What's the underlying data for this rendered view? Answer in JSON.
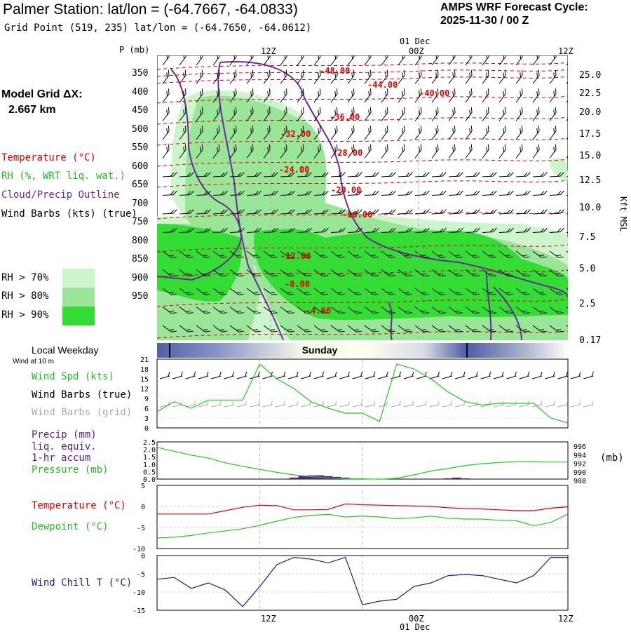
{
  "header": {
    "station_title": "Palmer Station:  lat/lon = (-64.7667, -64.0833)",
    "grid_point": "Grid Point (519, 235) lat/lon = (-64.7650, -64.0612)",
    "forecast_label": "AMPS WRF Forecast Cycle:",
    "forecast_cycle": "2025-11-30 / 00  Z"
  },
  "model": {
    "label": "Model Grid ΔX:",
    "value": "2.667 km"
  },
  "time_axis": {
    "date_label": "01 Dec",
    "ticks": [
      "12Z",
      "00Z",
      "12Z"
    ]
  },
  "colors": {
    "temperature": "#e00000",
    "rh": "#22bb22",
    "cloud": "#6a2a9a",
    "wind": "#000000",
    "wind_grid": "#aaaaaa",
    "precip": "#5a1a8a",
    "dewpoint": "#22cc22",
    "windchill": "#1a1aaa",
    "rh70": "#ccf5cc",
    "rh80": "#99e699",
    "rh90": "#33dd33",
    "weekday_bar": "#5060aa"
  },
  "legend": {
    "temperature": "Temperature (°C)",
    "rh": "RH (%, WRT liq. wat.)",
    "cloud": "Cloud/Precip Outline",
    "wind": "Wind Barbs (kts) (true)",
    "rh70": "RH > 70%",
    "rh80": "RH > 80%",
    "rh90": "RH > 90%"
  },
  "weekday": {
    "label": "Local Weekday",
    "day": "Sunday",
    "wind_note": "Wind at 10 m"
  },
  "chart_data": [
    {
      "type": "contour",
      "name": "cross-section",
      "ylabel": "P (mb)",
      "y2label": "Kft MSL",
      "pressure_ticks": [
        "350",
        "400",
        "450",
        "500",
        "550",
        "600",
        "650",
        "700",
        "750",
        "800",
        "850",
        "900",
        "950"
      ],
      "height_ticks": [
        "25.0",
        "22.5",
        "20.0",
        "17.5",
        "15.0",
        "12.5",
        "10.0",
        "7.5",
        "5.0",
        "2.5",
        "0.17"
      ],
      "temperature_labels": [
        "-48.00",
        "-44.00",
        "-40.00",
        "-36.00",
        "-32.00",
        "-28.00",
        "-24.00",
        "-20.00",
        "-16.00",
        "-12.00",
        "-8.00",
        "-4.00"
      ]
    },
    {
      "type": "line",
      "name": "wind",
      "labels": [
        "Wind Spd (kts)",
        "Wind Barbs (true)",
        "Wind Barbs (grid)"
      ],
      "yticks": [
        "21",
        "18",
        "15",
        "12",
        "9",
        "6",
        "3",
        "0"
      ],
      "ylim": [
        0,
        21
      ],
      "x_hours": [
        0,
        2,
        4,
        6,
        8,
        10,
        12,
        14,
        16,
        18,
        20,
        22,
        24,
        26,
        28,
        30,
        32,
        34,
        36,
        38,
        40,
        42,
        44,
        46,
        48
      ],
      "wind_speed": [
        5,
        8,
        6,
        8.5,
        8.5,
        8.5,
        19.5,
        15,
        12,
        8,
        6,
        4.5,
        4.5,
        2,
        19.5,
        18,
        15,
        11,
        8,
        7,
        7.5,
        7.5,
        7.5,
        3,
        1.5
      ]
    },
    {
      "type": "line",
      "name": "precip-pressure",
      "labels": [
        "Precip (mm)",
        "liq. equiv.",
        "1-hr accum",
        "Pressure (mb)"
      ],
      "yticks_left": [
        "2.5",
        "2.0",
        "1.5",
        "1.0",
        "0.5",
        "0.0"
      ],
      "yticks_right": [
        "996",
        "994",
        "992",
        "990",
        "988"
      ],
      "y2label": "(mb)",
      "x_hours": [
        0,
        2,
        4,
        6,
        8,
        10,
        12,
        14,
        16,
        18,
        20,
        22,
        24,
        26,
        28,
        30,
        32,
        34,
        36,
        38,
        40,
        42,
        44,
        46,
        48
      ],
      "pressure": [
        995.7,
        994.8,
        993.9,
        993.2,
        992.1,
        991.3,
        990.6,
        989.9,
        989.3,
        988.9,
        988.6,
        988.4,
        988.4,
        988.3,
        988.5,
        989.3,
        990.2,
        990.8,
        991.5,
        991.9,
        992.2,
        992.4,
        992.4,
        992.3,
        992.3
      ],
      "precip_hours": [
        16,
        17,
        18,
        19,
        20,
        21,
        22,
        23,
        34,
        35,
        36
      ],
      "precip": [
        0.1,
        0.2,
        0.25,
        0.25,
        0.2,
        0.15,
        0.1,
        0.05,
        0.05,
        0.1,
        0.05
      ]
    },
    {
      "type": "line",
      "name": "temperature-dewpoint",
      "labels": [
        "Temperature (°C)",
        "Dewpoint (°C)"
      ],
      "yticks": [
        "5",
        "0",
        "-5",
        "-10"
      ],
      "ylim": [
        -10,
        5
      ],
      "x_hours": [
        0,
        2,
        4,
        6,
        8,
        10,
        12,
        14,
        16,
        18,
        20,
        22,
        24,
        26,
        28,
        30,
        32,
        34,
        36,
        38,
        40,
        42,
        44,
        46,
        48
      ],
      "temperature": [
        -1.8,
        -1.8,
        -1.8,
        -1.8,
        -1.0,
        -0.2,
        0.3,
        0.2,
        -0.8,
        -0.8,
        -0.7,
        0.6,
        0.4,
        0.3,
        0.2,
        0.1,
        0.0,
        -0.3,
        -0.5,
        -0.6,
        -0.8,
        -1.0,
        -1.0,
        -0.4,
        -0.1
      ],
      "dewpoint": [
        -7.5,
        -7.3,
        -6.9,
        -6.3,
        -5.8,
        -5.3,
        -4.5,
        -3.5,
        -2.6,
        -2.1,
        -1.9,
        -2.5,
        -2.3,
        -2.5,
        -2.9,
        -2.7,
        -2.3,
        -2.8,
        -3.0,
        -3.0,
        -3.3,
        -3.4,
        -4.6,
        -3.8,
        -1.8
      ]
    },
    {
      "type": "line",
      "name": "wind-chill",
      "labels": [
        "Wind Chill T (°C)"
      ],
      "yticks": [
        "0",
        "-5",
        "-10",
        "-15"
      ],
      "ylim": [
        -15,
        0
      ],
      "x_hours": [
        0,
        2,
        4,
        6,
        8,
        10,
        12,
        14,
        16,
        18,
        20,
        22,
        24,
        26,
        28,
        30,
        32,
        34,
        36,
        38,
        40,
        42,
        44,
        46,
        48
      ],
      "wind_chill": [
        -6.5,
        -6.0,
        -9.0,
        -7.5,
        -9.5,
        -14.0,
        -8.5,
        -2.5,
        -0.5,
        -1.0,
        -2.0,
        -0.5,
        -13.5,
        -12.5,
        -12.0,
        -8.5,
        -7.5,
        -5.5,
        -5.2,
        -5.5,
        -6.5,
        -7.5,
        -5.5,
        -0.5,
        -0.5
      ]
    }
  ]
}
